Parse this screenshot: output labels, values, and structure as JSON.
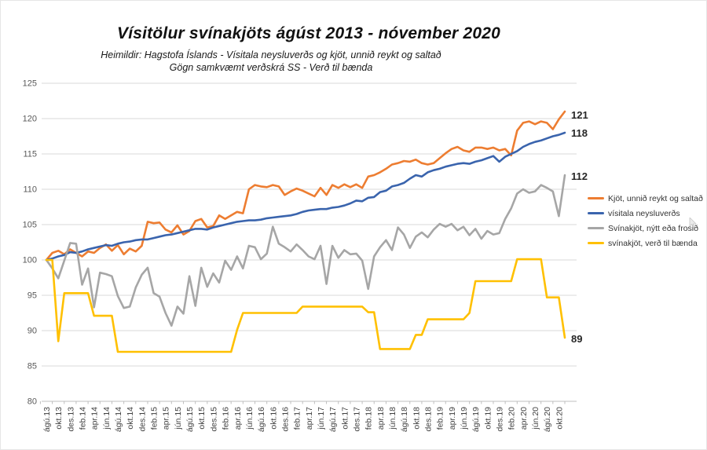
{
  "title": "Vísitölur svínakjöts ágúst 2013 - nóvember 2020",
  "subtitle_line1": "Heimildir: Hagstofa Íslands - Vísitala neysluverðs og kjöt, unnið reykt og saltað",
  "subtitle_line2": "Gögn samkvæmt verðskrá SS - Verð til bænda",
  "end_labels": {
    "kjot": "121",
    "cpi": "118",
    "svinakjot": "112",
    "baendur": "89"
  },
  "legend": {
    "items": [
      {
        "label": "Kjöt, unnið reykt og saltað",
        "color": "#ED7D31"
      },
      {
        "label": "vísitala neysluverðs",
        "color": "#3A64AD"
      },
      {
        "label": "Svínakjöt, nýtt eða frosið",
        "color": "#A6A6A6"
      },
      {
        "label": "svínakjöt, verð til bænda",
        "color": "#FFC000"
      }
    ]
  },
  "colors": {
    "gridline": "#d9d9d9",
    "axis": "#bfbfbf",
    "tick_text": "#595959",
    "x_tick_text": "#404040"
  },
  "chart_data": {
    "type": "line",
    "title": "Vísitölur svínakjöts ágúst 2013 - nóvember 2020",
    "x_description": "Monthly, August 2013 to November 2020 (88 points), index base 100",
    "y_axis": {
      "min": 80,
      "max": 125,
      "step": 5
    },
    "grid": "horizontal",
    "legend_position": "right",
    "x_tick_labels": [
      "ágú.13",
      "okt.13",
      "des.13",
      "feb.14",
      "apr.14",
      "jún.14",
      "ágú.14",
      "okt.14",
      "des.14",
      "feb.15",
      "apr.15",
      "jún.15",
      "ágú.15",
      "okt.15",
      "des.15",
      "feb.16",
      "apr.16",
      "jún.16",
      "ágú.16",
      "okt.16",
      "des.16",
      "feb.17",
      "apr.17",
      "jún.17",
      "ágú.17",
      "okt.17",
      "des.17",
      "feb.18",
      "apr.18",
      "jún.18",
      "ágú.18",
      "okt.18",
      "des.18",
      "feb.19",
      "apr.19",
      "jún.19",
      "ágú.19",
      "okt.19",
      "des.19",
      "feb.20",
      "apr.20",
      "jún.20",
      "ágú.20",
      "okt.20"
    ],
    "series": [
      {
        "name": "Kjöt, unnið reykt og saltað",
        "color": "#ED7D31",
        "end_value_label": "121",
        "values": [
          100,
          101.0,
          101.3,
          100.8,
          101.5,
          101.0,
          100.5,
          101.2,
          101.0,
          101.7,
          102.2,
          101.3,
          102.1,
          100.8,
          101.6,
          101.2,
          102.0,
          105.4,
          105.2,
          105.3,
          104.3,
          103.9,
          104.9,
          103.6,
          104.1,
          105.5,
          105.8,
          104.6,
          104.8,
          106.3,
          105.8,
          106.3,
          106.8,
          106.6,
          110.0,
          110.6,
          110.4,
          110.3,
          110.6,
          110.4,
          109.2,
          109.7,
          110.1,
          109.8,
          109.4,
          109.0,
          110.2,
          109.2,
          110.6,
          110.2,
          110.7,
          110.3,
          110.7,
          110.2,
          111.8,
          112.0,
          112.4,
          112.9,
          113.5,
          113.7,
          114.0,
          113.9,
          114.2,
          113.7,
          113.5,
          113.7,
          114.4,
          115.1,
          115.7,
          116.0,
          115.5,
          115.3,
          115.9,
          115.9,
          115.7,
          115.9,
          115.5,
          115.7,
          114.8,
          118.3,
          119.4,
          119.6,
          119.2,
          119.6,
          119.4,
          118.5,
          119.9,
          121
        ]
      },
      {
        "name": "vísitala neysluverðs",
        "color": "#3A64AD",
        "end_value_label": "118",
        "values": [
          100,
          100.2,
          100.5,
          100.7,
          101.1,
          101.0,
          101.2,
          101.5,
          101.7,
          101.9,
          102.1,
          102.0,
          102.3,
          102.5,
          102.6,
          102.8,
          102.9,
          102.9,
          103.1,
          103.3,
          103.5,
          103.6,
          103.8,
          104.0,
          104.2,
          104.4,
          104.4,
          104.3,
          104.6,
          104.8,
          105.0,
          105.2,
          105.4,
          105.5,
          105.6,
          105.6,
          105.7,
          105.9,
          106.0,
          106.1,
          106.2,
          106.3,
          106.5,
          106.8,
          107.0,
          107.1,
          107.2,
          107.2,
          107.4,
          107.5,
          107.7,
          108.0,
          108.4,
          108.3,
          108.8,
          108.9,
          109.6,
          109.8,
          110.4,
          110.6,
          110.9,
          111.5,
          112.0,
          111.8,
          112.4,
          112.7,
          112.9,
          113.2,
          113.4,
          113.6,
          113.7,
          113.6,
          113.9,
          114.1,
          114.4,
          114.7,
          113.9,
          114.6,
          115.0,
          115.4,
          116.0,
          116.4,
          116.7,
          116.9,
          117.2,
          117.5,
          117.7,
          118
        ]
      },
      {
        "name": "Svínakjöt, nýtt eða frosið",
        "color": "#A6A6A6",
        "end_value_label": "112",
        "values": [
          100,
          98.8,
          97.4,
          99.9,
          102.4,
          102.3,
          96.5,
          98.8,
          93.3,
          98.2,
          98.0,
          97.7,
          94.9,
          93.2,
          93.4,
          96.1,
          97.9,
          98.9,
          95.3,
          94.8,
          92.5,
          90.7,
          93.4,
          92.4,
          97.7,
          93.5,
          98.9,
          96.2,
          98.1,
          96.8,
          99.9,
          98.6,
          100.5,
          98.8,
          102.0,
          101.8,
          100.1,
          100.9,
          104.7,
          102.3,
          101.8,
          101.2,
          102.2,
          101.4,
          100.5,
          100.1,
          102.0,
          96.6,
          102.0,
          100.3,
          101.4,
          100.8,
          100.9,
          99.9,
          95.9,
          100.5,
          101.8,
          102.8,
          101.4,
          104.6,
          103.6,
          101.7,
          103.3,
          103.9,
          103.2,
          104.3,
          105.1,
          104.7,
          105.1,
          104.2,
          104.7,
          103.5,
          104.4,
          103.0,
          104.1,
          103.6,
          103.8,
          105.8,
          107.3,
          109.4,
          110.0,
          109.5,
          109.7,
          110.6,
          110.2,
          109.7,
          106.2,
          112
        ]
      },
      {
        "name": "svínakjöt, verð til bænda",
        "color": "#FFC000",
        "end_value_label": "89",
        "values": [
          100,
          100,
          88.5,
          95.3,
          95.3,
          95.3,
          95.3,
          95.3,
          92.1,
          92.1,
          92.1,
          92.1,
          87.0,
          87.0,
          87.0,
          87.0,
          87.0,
          87.0,
          87.0,
          87.0,
          87.0,
          87.0,
          87.0,
          87.0,
          87.0,
          87.0,
          87.0,
          87.0,
          87.0,
          87.0,
          87.0,
          87.0,
          90.1,
          92.5,
          92.5,
          92.5,
          92.5,
          92.5,
          92.5,
          92.5,
          92.5,
          92.5,
          92.5,
          93.4,
          93.4,
          93.4,
          93.4,
          93.4,
          93.4,
          93.4,
          93.4,
          93.4,
          93.4,
          93.4,
          92.6,
          92.6,
          87.4,
          87.4,
          87.4,
          87.4,
          87.4,
          87.4,
          89.4,
          89.4,
          91.6,
          91.6,
          91.6,
          91.6,
          91.6,
          91.6,
          91.6,
          92.5,
          97.0,
          97.0,
          97.0,
          97.0,
          97.0,
          97.0,
          97.0,
          100.1,
          100.1,
          100.1,
          100.1,
          100.1,
          94.7,
          94.7,
          94.7,
          89
        ]
      }
    ]
  }
}
